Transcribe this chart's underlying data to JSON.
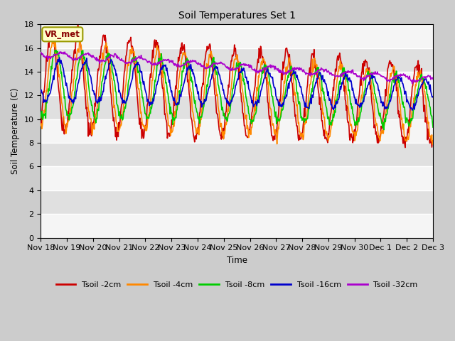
{
  "title": "Soil Temperatures Set 1",
  "xlabel": "Time",
  "ylabel": "Soil Temperature (C)",
  "ylim": [
    0,
    18
  ],
  "yticks": [
    0,
    2,
    4,
    6,
    8,
    10,
    12,
    14,
    16,
    18
  ],
  "colors": {
    "Tsoil -2cm": "#cc0000",
    "Tsoil -4cm": "#ff8800",
    "Tsoil -8cm": "#00cc00",
    "Tsoil -16cm": "#0000cc",
    "Tsoil -32cm": "#aa00cc"
  },
  "xtick_labels": [
    "Nov 18",
    "Nov 19",
    "Nov 20",
    "Nov 21",
    "Nov 22",
    "Nov 23",
    "Nov 24",
    "Nov 25",
    "Nov 26",
    "Nov 27",
    "Nov 28",
    "Nov 29",
    "Nov 30",
    "Dec 1",
    "Dec 2",
    "Dec 3"
  ],
  "annotation_text": "VR_met",
  "annotation_box_facecolor": "#ffffcc",
  "annotation_text_color": "#880000",
  "annotation_edge_color": "#999900",
  "fig_facecolor": "#cccccc",
  "plot_bg_light": "#f5f5f5",
  "plot_bg_dark": "#e0e0e0",
  "linewidth": 1.2,
  "n_days": 15,
  "n_pts_per_day": 48
}
